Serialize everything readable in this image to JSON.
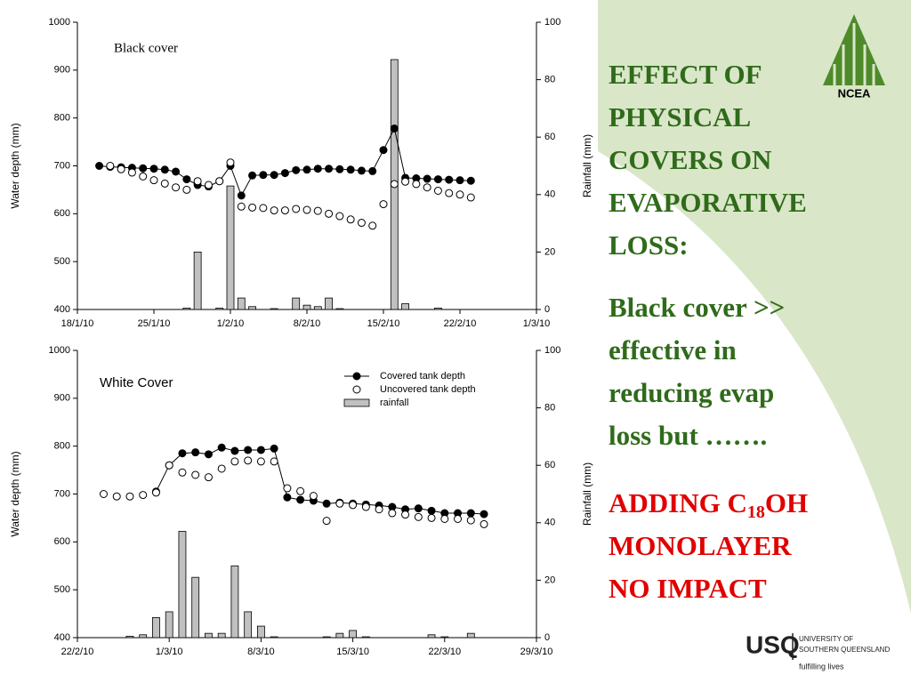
{
  "chart_data": [
    {
      "type": "combo",
      "annotation": "Black  cover",
      "ylabel": "Water depth (mm)",
      "y2label": "Rainfall (mm)",
      "x": [
        "2010-01-20",
        "2010-01-21",
        "2010-01-22",
        "2010-01-23",
        "2010-01-24",
        "2010-01-25",
        "2010-01-26",
        "2010-01-27",
        "2010-01-28",
        "2010-01-29",
        "2010-01-30",
        "2010-01-31",
        "2010-02-01",
        "2010-02-02",
        "2010-02-03",
        "2010-02-04",
        "2010-02-05",
        "2010-02-06",
        "2010-02-07",
        "2010-02-08",
        "2010-02-09",
        "2010-02-10",
        "2010-02-11",
        "2010-02-12",
        "2010-02-13",
        "2010-02-14",
        "2010-02-15",
        "2010-02-16",
        "2010-02-17",
        "2010-02-18",
        "2010-02-19",
        "2010-02-20",
        "2010-02-21",
        "2010-02-22",
        "2010-02-23"
      ],
      "xlim": [
        "2010-01-18",
        "2010-03-01"
      ],
      "xticks": [
        {
          "value": "2010-01-18",
          "label": "18/1/10"
        },
        {
          "value": "2010-01-25",
          "label": "25/1/10"
        },
        {
          "value": "2010-02-01",
          "label": "1/2/10"
        },
        {
          "value": "2010-02-08",
          "label": "8/2/10"
        },
        {
          "value": "2010-02-15",
          "label": "15/2/10"
        },
        {
          "value": "2010-02-22",
          "label": "22/2/10"
        },
        {
          "value": "2010-03-01",
          "label": "1/3/10"
        }
      ],
      "ylim": [
        400,
        1000
      ],
      "yticks": [
        400,
        500,
        600,
        700,
        800,
        900,
        1000
      ],
      "y2lim": [
        0,
        100
      ],
      "y2ticks": [
        0,
        20,
        40,
        60,
        80,
        100
      ],
      "legend": false,
      "series": [
        {
          "type": "bar",
          "axis": "y2",
          "color": "#c0c0c0",
          "values": [
            null,
            null,
            null,
            null,
            null,
            null,
            null,
            null,
            0.5,
            20,
            null,
            0.5,
            43,
            4,
            1,
            null,
            0.3,
            null,
            4,
            1.5,
            1,
            4,
            0.3,
            null,
            null,
            null,
            null,
            87,
            2,
            null,
            null,
            0.5,
            null,
            null,
            null
          ]
        },
        {
          "type": "line",
          "marker": "filled",
          "color": "#000000",
          "values": [
            700,
            698,
            697,
            696,
            695,
            694,
            692,
            688,
            672,
            660,
            657,
            668,
            700,
            638,
            680,
            681,
            681,
            685,
            691,
            692,
            694,
            694,
            693,
            692,
            690,
            689,
            733,
            778,
            675,
            674,
            673,
            672,
            671,
            670,
            669
          ]
        },
        {
          "type": "scatter",
          "marker": "open",
          "color": "#000000",
          "values": [
            null,
            700,
            693,
            686,
            678,
            670,
            663,
            655,
            650,
            668,
            660,
            668,
            707,
            615,
            613,
            612,
            607,
            607,
            610,
            608,
            606,
            600,
            595,
            588,
            581,
            575,
            620,
            662,
            667,
            662,
            655,
            648,
            643,
            640,
            634
          ]
        }
      ]
    },
    {
      "type": "combo",
      "annotation": "White Cover",
      "ylabel": "Water depth (mm)",
      "y2label": "Rainfall (mm)",
      "x": [
        "2010-02-24",
        "2010-02-25",
        "2010-02-26",
        "2010-02-27",
        "2010-02-28",
        "2010-03-01",
        "2010-03-02",
        "2010-03-03",
        "2010-03-04",
        "2010-03-05",
        "2010-03-06",
        "2010-03-07",
        "2010-03-08",
        "2010-03-09",
        "2010-03-10",
        "2010-03-11",
        "2010-03-12",
        "2010-03-13",
        "2010-03-14",
        "2010-03-15",
        "2010-03-16",
        "2010-03-17",
        "2010-03-18",
        "2010-03-19",
        "2010-03-20",
        "2010-03-21",
        "2010-03-22",
        "2010-03-23",
        "2010-03-24",
        "2010-03-25"
      ],
      "xlim": [
        "2010-02-22",
        "2010-03-29"
      ],
      "xticks": [
        {
          "value": "2010-02-22",
          "label": "22/2/10"
        },
        {
          "value": "2010-03-01",
          "label": "1/3/10"
        },
        {
          "value": "2010-03-08",
          "label": "8/3/10"
        },
        {
          "value": "2010-03-15",
          "label": "15/3/10"
        },
        {
          "value": "2010-03-22",
          "label": "22/3/10"
        },
        {
          "value": "2010-03-29",
          "label": "29/3/10"
        }
      ],
      "ylim": [
        400,
        1000
      ],
      "yticks": [
        400,
        500,
        600,
        700,
        800,
        900,
        1000
      ],
      "y2lim": [
        0,
        100
      ],
      "y2ticks": [
        0,
        20,
        40,
        60,
        80,
        100
      ],
      "legend": true,
      "legend_location": "upper right",
      "series": [
        {
          "type": "bar",
          "axis": "y2",
          "name": "rainfall",
          "color": "#c0c0c0",
          "values": [
            null,
            null,
            0.5,
            1,
            7,
            9,
            37,
            21,
            1.5,
            1.5,
            25,
            9,
            4,
            0.3,
            null,
            null,
            null,
            0.3,
            1.5,
            2.5,
            0.3,
            null,
            null,
            null,
            null,
            1,
            0.3,
            null,
            1.5,
            null
          ]
        },
        {
          "type": "line",
          "marker": "filled",
          "name": "Covered tank depth",
          "color": "#000000",
          "values": [
            null,
            null,
            null,
            null,
            705,
            760,
            785,
            787,
            783,
            797,
            790,
            792,
            792,
            795,
            693,
            688,
            686,
            680,
            682,
            680,
            678,
            676,
            673,
            668,
            670,
            665,
            660,
            660,
            660,
            658
          ]
        },
        {
          "type": "scatter",
          "marker": "open",
          "name": "Uncovered tank depth",
          "color": "#000000",
          "values": [
            700,
            695,
            695,
            698,
            703,
            760,
            745,
            740,
            735,
            753,
            768,
            770,
            768,
            768,
            712,
            706,
            696,
            644,
            680,
            677,
            673,
            668,
            660,
            657,
            652,
            650,
            648,
            648,
            645,
            637
          ]
        }
      ]
    }
  ],
  "panel": {
    "title_lines": [
      "EFFECT OF",
      "PHYSICAL",
      "COVERS ON",
      "EVAPORATIVE",
      "LOSS:"
    ],
    "body_lines": [
      "Black cover >>",
      "effective in",
      "reducing evap",
      "loss but ……."
    ],
    "red": {
      "before": "ADDING C",
      "sub": "18",
      "after": "OH",
      "lines": [
        "MONOLAYER",
        "NO IMPACT"
      ]
    },
    "logo_top": "NCEA",
    "logo_usq": "USQ",
    "logo_uni1": "UNIVERSITY OF",
    "logo_uni2": "SOUTHERN QUEENSLAND",
    "logo_tag": "fulfilling lives"
  }
}
